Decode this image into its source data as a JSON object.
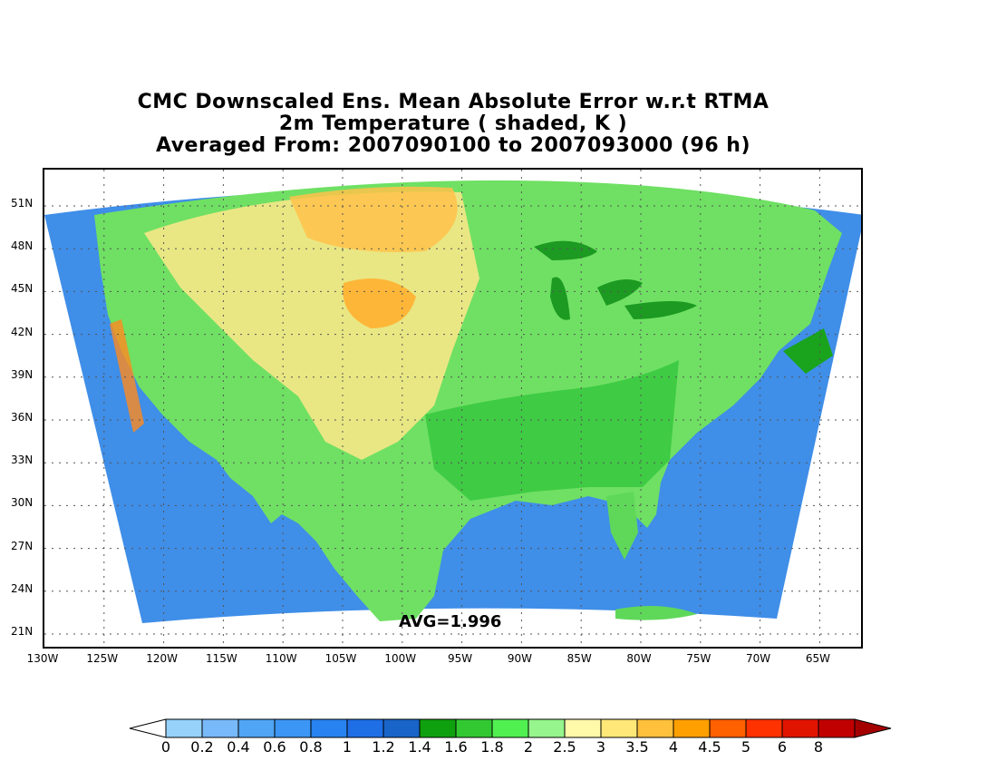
{
  "title": {
    "line1": "CMC Downscaled Ens. Mean Absolute Error w.r.t RTMA",
    "line2": "2m Temperature ( shaded, K )",
    "line3": "Averaged From: 2007090100 to 2007093000 (96 h)"
  },
  "map": {
    "projection": "conic",
    "lat_labels": [
      "51N",
      "48N",
      "45N",
      "42N",
      "39N",
      "36N",
      "33N",
      "30N",
      "27N",
      "24N",
      "21N"
    ],
    "lon_labels": [
      "130W",
      "125W",
      "120W",
      "115W",
      "110W",
      "105W",
      "100W",
      "95W",
      "90W",
      "85W",
      "80W",
      "75W",
      "70W",
      "65W"
    ],
    "grid": "dotted",
    "avg_label": "AVG=1.996",
    "colors": {
      "ocean": "#3f8ee8",
      "land_low": "#44d64a",
      "land_mid": "#9ef08a",
      "land_high": "#ffe27a",
      "hot": "#ffa021",
      "lake": "#1aa31c"
    }
  },
  "colorbar": {
    "labels": [
      "0",
      "0.2",
      "0.4",
      "0.6",
      "0.8",
      "1",
      "1.2",
      "1.4",
      "1.6",
      "1.8",
      "2",
      "2.5",
      "3",
      "3.5",
      "4",
      "4.5",
      "5",
      "6",
      "8"
    ],
    "colors": [
      "#96d2fa",
      "#78b9fa",
      "#50a5f5",
      "#3c96f5",
      "#2882f0",
      "#1e6ee6",
      "#1964c8",
      "#0fa00f",
      "#32c832",
      "#50f050",
      "#96f58c",
      "#fffaaa",
      "#ffe878",
      "#ffc03c",
      "#ffa000",
      "#ff6000",
      "#ff3200",
      "#e11400",
      "#c00000"
    ]
  }
}
